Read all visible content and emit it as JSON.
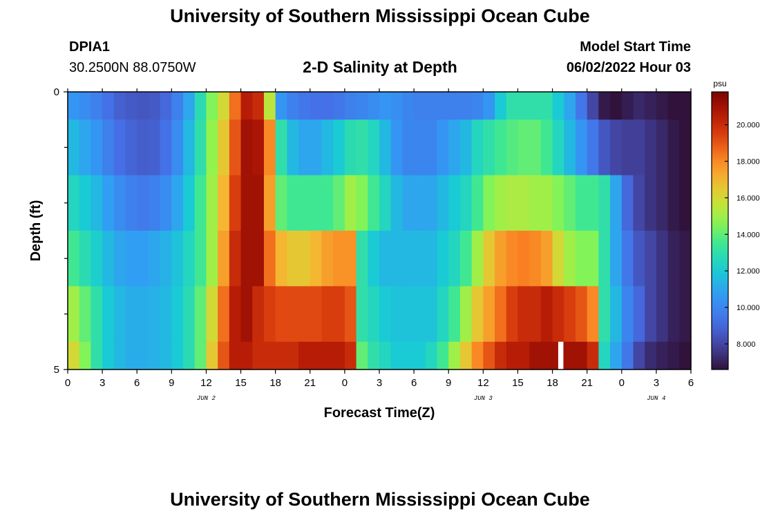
{
  "page": {
    "title_top": "University of Southern Mississippi Ocean Cube",
    "title_bottom": "University of Southern Mississippi Ocean Cube",
    "station_id": "DPIA1",
    "station_coords": "30.2500N  88.0750W",
    "chart_title": "2-D Salinity at Depth",
    "model_start_label": "Model Start Time",
    "model_start_time": "06/02/2022 Hour 03"
  },
  "chart_data": {
    "type": "heatmap",
    "title": "2-D Salinity at Depth",
    "xlabel": "Forecast Time(Z)",
    "ylabel": "Depth (ft)",
    "x_hours_from_start": [
      0,
      54
    ],
    "x_tick_labels": [
      "0",
      "3",
      "6",
      "9",
      "12",
      "15",
      "18",
      "21",
      "0",
      "3",
      "6",
      "9",
      "12",
      "15",
      "18",
      "21",
      "0",
      "3",
      "6"
    ],
    "date_labels": [
      {
        "label": "JUN 2",
        "hour": 12
      },
      {
        "label": "JUN 3",
        "hour": 36
      },
      {
        "label": "JUN 4",
        "hour": 51
      }
    ],
    "y_range": [
      0,
      5
    ],
    "y_tick_labels": [
      {
        "depth": 0,
        "label": "0"
      },
      {
        "depth": 5,
        "label": "5"
      }
    ],
    "y_minor_ticks": [
      1,
      2,
      3,
      4
    ],
    "depth_layers": [
      {
        "top": 0,
        "bottom": 0.5
      },
      {
        "top": 0.5,
        "bottom": 1.5
      },
      {
        "top": 1.5,
        "bottom": 2.5
      },
      {
        "top": 2.5,
        "bottom": 3.5
      },
      {
        "top": 3.5,
        "bottom": 4.5
      },
      {
        "top": 4.5,
        "bottom": 5
      }
    ],
    "missing_cells": [
      {
        "hour": 42.5,
        "layer": 5
      }
    ],
    "salinity_psu": [
      [
        10.5,
        10.2,
        9.8,
        9.3,
        8.8,
        8.6,
        8.5,
        8.6,
        9.0,
        9.8,
        11.0,
        12.8,
        14.5,
        16.0,
        18.5,
        20.5,
        20.0,
        15.5,
        10.5,
        9.8,
        9.5,
        9.3,
        9.3,
        9.5,
        9.8,
        10.0,
        10.2,
        10.5,
        10.3,
        10.0,
        9.8,
        9.8,
        9.8,
        9.8,
        9.8,
        10.0,
        10.5,
        12.0,
        13.0,
        13.0,
        13.0,
        13.0,
        12.0,
        11.0,
        9.5,
        8.0,
        6.8,
        6.5,
        6.9,
        7.2,
        7.0,
        6.8,
        6.6,
        6.4
      ],
      [
        11.5,
        11.0,
        10.5,
        9.8,
        9.2,
        8.9,
        8.7,
        8.8,
        9.3,
        10.2,
        11.5,
        13.0,
        14.8,
        16.5,
        19.0,
        21.0,
        20.8,
        18.0,
        13.0,
        11.5,
        11.0,
        11.0,
        11.5,
        12.0,
        12.8,
        13.0,
        12.5,
        11.5,
        10.5,
        10.0,
        10.0,
        10.0,
        10.5,
        11.0,
        11.5,
        12.5,
        13.0,
        13.5,
        13.8,
        14.0,
        14.0,
        13.5,
        12.5,
        11.5,
        10.5,
        9.5,
        8.5,
        8.0,
        7.8,
        7.8,
        7.5,
        7.2,
        6.8,
        6.5
      ],
      [
        12.5,
        12.0,
        11.5,
        10.8,
        10.2,
        9.8,
        9.6,
        9.8,
        10.2,
        11.0,
        12.0,
        13.5,
        15.0,
        17.0,
        19.5,
        21.0,
        21.0,
        17.5,
        14.0,
        13.5,
        13.5,
        13.5,
        13.5,
        14.0,
        15.0,
        14.5,
        13.5,
        12.5,
        11.5,
        11.0,
        11.0,
        11.0,
        11.5,
        12.0,
        12.5,
        13.5,
        14.5,
        15.0,
        15.2,
        15.2,
        15.0,
        15.0,
        14.5,
        14.0,
        13.5,
        13.5,
        13.0,
        11.0,
        9.0,
        8.0,
        7.5,
        7.2,
        6.8,
        6.5
      ],
      [
        13.5,
        12.8,
        12.2,
        11.5,
        11.0,
        10.8,
        10.8,
        11.0,
        11.3,
        11.8,
        12.5,
        13.5,
        15.0,
        17.5,
        20.0,
        21.0,
        21.0,
        18.5,
        17.0,
        16.5,
        16.5,
        17.0,
        17.5,
        17.8,
        17.8,
        13.0,
        12.0,
        11.5,
        11.5,
        11.5,
        11.5,
        11.5,
        12.0,
        12.5,
        13.5,
        15.0,
        16.5,
        17.5,
        18.0,
        18.2,
        18.0,
        17.5,
        16.0,
        15.0,
        14.5,
        14.5,
        13.0,
        11.0,
        9.5,
        8.5,
        8.0,
        7.5,
        7.0,
        6.8
      ],
      [
        15.0,
        14.0,
        13.0,
        12.0,
        11.5,
        11.2,
        11.2,
        11.3,
        11.5,
        12.0,
        12.8,
        14.0,
        16.0,
        18.5,
        20.5,
        21.0,
        20.0,
        19.5,
        19.2,
        19.2,
        19.2,
        19.2,
        19.5,
        19.5,
        19.0,
        13.0,
        12.5,
        12.0,
        11.8,
        11.8,
        11.8,
        11.8,
        12.5,
        13.5,
        15.0,
        16.5,
        17.5,
        18.5,
        19.5,
        20.0,
        20.0,
        20.5,
        20.0,
        19.5,
        19.0,
        18.0,
        13.0,
        11.5,
        10.0,
        9.0,
        8.0,
        7.5,
        7.0,
        6.8
      ],
      [
        16.0,
        14.5,
        13.0,
        12.0,
        11.5,
        11.2,
        11.2,
        11.3,
        11.5,
        12.0,
        12.8,
        14.0,
        16.5,
        19.0,
        20.5,
        20.5,
        20.0,
        20.0,
        20.0,
        20.0,
        20.5,
        20.5,
        20.5,
        20.5,
        20.0,
        14.0,
        13.0,
        12.5,
        12.0,
        12.0,
        12.0,
        12.5,
        13.5,
        15.0,
        16.5,
        18.0,
        19.0,
        20.0,
        20.5,
        20.5,
        21.0,
        21.0,
        21.0,
        21.0,
        21.0,
        20.0,
        12.5,
        11.0,
        9.5,
        8.0,
        7.3,
        7.0,
        6.8,
        6.6
      ]
    ],
    "colorbar": {
      "unit": "psu",
      "range": [
        6.6,
        21.8
      ],
      "ticks": [
        "8.000",
        "10.000",
        "12.000",
        "14.000",
        "16.000",
        "18.000",
        "20.000"
      ]
    }
  }
}
